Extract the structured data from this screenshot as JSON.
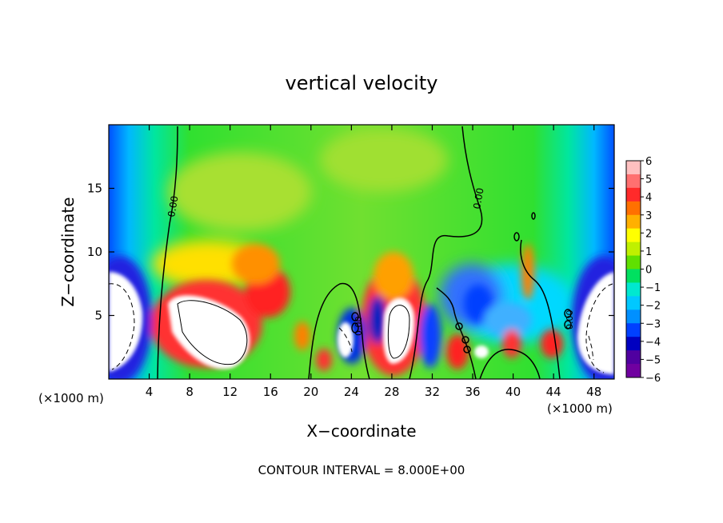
{
  "chart_data": {
    "type": "heatmap",
    "title": "vertical velocity",
    "xlabel": "X−coordinate",
    "ylabel": "Z−coordinate",
    "x_unit_left": "(×1000 m)",
    "x_unit_right": "(×1000 m)",
    "footer": "CONTOUR INTERVAL = 8.000E+00",
    "xlim": [
      0,
      50
    ],
    "ylim": [
      0,
      20
    ],
    "xticks": [
      4,
      8,
      12,
      16,
      20,
      24,
      28,
      32,
      36,
      40,
      44,
      48
    ],
    "xtick_labels": [
      "4",
      "8",
      "12",
      "16",
      "20",
      "24",
      "28",
      "32",
      "36",
      "40",
      "44",
      "48"
    ],
    "yticks": [
      5,
      10,
      15
    ],
    "ytick_labels": [
      "5",
      "10",
      "15"
    ],
    "colorbar": {
      "min": -6,
      "max": 6,
      "tick_labels": [
        "6",
        "5",
        "4",
        "3",
        "2",
        "1",
        "0",
        "−1",
        "−2",
        "−3",
        "−4",
        "−5",
        "−6"
      ]
    },
    "contour_labels": [
      "0.00",
      "0.00",
      "0.00",
      "0.00"
    ],
    "grid": false,
    "legend": "right"
  }
}
